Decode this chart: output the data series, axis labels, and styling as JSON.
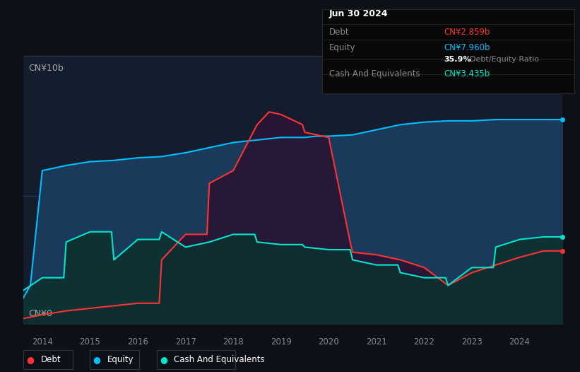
{
  "background_color": "#0d1117",
  "plot_bg_color": "#131d2e",
  "title_box": {
    "date": "Jun 30 2024",
    "debt_label": "Debt",
    "debt_value": "CN¥2.859b",
    "debt_color": "#ff3333",
    "equity_label": "Equity",
    "equity_value": "CN¥7.960b",
    "equity_color": "#00bfff",
    "ratio_bold": "35.9%",
    "ratio_text": " Debt/Equity Ratio",
    "cash_label": "Cash And Equivalents",
    "cash_value": "CN¥3.435b",
    "cash_color": "#00e5cc"
  },
  "ylabel_top": "CN¥10b",
  "ylabel_bottom": "CN¥0",
  "xlim_start": 2013.6,
  "xlim_end": 2024.9,
  "ylim_min": 0,
  "ylim_max": 10.5,
  "gridline_y": 5.0,
  "legend": [
    {
      "label": "Debt",
      "color": "#ff3333"
    },
    {
      "label": "Equity",
      "color": "#00bfff"
    },
    {
      "label": "Cash And Equivalents",
      "color": "#00e5cc"
    }
  ],
  "equity": {
    "x": [
      2013.6,
      2013.75,
      2014.0,
      2014.5,
      2015.0,
      2015.5,
      2016.0,
      2016.5,
      2017.0,
      2017.5,
      2018.0,
      2018.5,
      2019.0,
      2019.5,
      2019.75,
      2020.0,
      2020.5,
      2021.0,
      2021.5,
      2022.0,
      2022.5,
      2023.0,
      2023.5,
      2024.0,
      2024.5,
      2024.9
    ],
    "y": [
      1.0,
      1.5,
      6.0,
      6.2,
      6.35,
      6.4,
      6.5,
      6.55,
      6.7,
      6.9,
      7.1,
      7.2,
      7.3,
      7.3,
      7.35,
      7.35,
      7.4,
      7.6,
      7.8,
      7.9,
      7.95,
      7.95,
      8.0,
      8.0,
      8.0,
      8.0
    ]
  },
  "debt": {
    "x": [
      2013.6,
      2014.0,
      2014.5,
      2015.0,
      2015.5,
      2016.0,
      2016.45,
      2016.5,
      2017.0,
      2017.45,
      2017.5,
      2018.0,
      2018.5,
      2018.75,
      2019.0,
      2019.45,
      2019.5,
      2019.75,
      2020.0,
      2020.45,
      2020.5,
      2021.0,
      2021.5,
      2022.0,
      2022.5,
      2023.0,
      2023.5,
      2024.0,
      2024.5,
      2024.9
    ],
    "y": [
      0.2,
      0.35,
      0.5,
      0.6,
      0.7,
      0.8,
      0.8,
      2.5,
      3.5,
      3.5,
      5.5,
      6.0,
      7.8,
      8.3,
      8.2,
      7.8,
      7.5,
      7.4,
      7.3,
      3.2,
      2.8,
      2.7,
      2.5,
      2.2,
      1.5,
      2.0,
      2.3,
      2.6,
      2.85,
      2.85
    ]
  },
  "cash": {
    "x": [
      2013.6,
      2014.0,
      2014.45,
      2014.5,
      2015.0,
      2015.45,
      2015.5,
      2016.0,
      2016.45,
      2016.5,
      2017.0,
      2017.5,
      2018.0,
      2018.45,
      2018.5,
      2019.0,
      2019.45,
      2019.5,
      2020.0,
      2020.45,
      2020.5,
      2021.0,
      2021.45,
      2021.5,
      2022.0,
      2022.45,
      2022.5,
      2023.0,
      2023.45,
      2023.5,
      2024.0,
      2024.5,
      2024.9
    ],
    "y": [
      1.3,
      1.8,
      1.8,
      3.2,
      3.6,
      3.6,
      2.5,
      3.3,
      3.3,
      3.6,
      3.0,
      3.2,
      3.5,
      3.5,
      3.2,
      3.1,
      3.1,
      3.0,
      2.9,
      2.9,
      2.5,
      2.3,
      2.3,
      2.0,
      1.8,
      1.8,
      1.5,
      2.2,
      2.2,
      3.0,
      3.3,
      3.4,
      3.4
    ]
  }
}
